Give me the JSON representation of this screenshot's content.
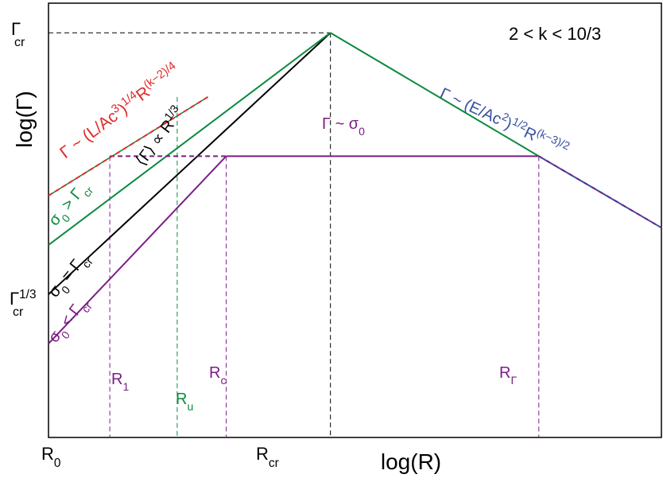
{
  "chart_data": {
    "type": "line",
    "title": "",
    "annotation": "2 < k < 10/3",
    "xlabel": "log(R)",
    "ylabel": "log(Γ)",
    "scale": "log-log",
    "grid": false,
    "legend": "none",
    "x_ticks": [
      {
        "name": "R0",
        "base": "R",
        "sub": "0",
        "x": 0
      },
      {
        "name": "Rcr",
        "base": "R",
        "sub": "cr",
        "x": 0.46
      }
    ],
    "y_ticks": [
      {
        "name": "gamma-cr",
        "base": "Γ",
        "sub": "cr",
        "sup": "",
        "y": 0.82
      },
      {
        "name": "gamma-cr-third",
        "base": "Γ",
        "sub": "cr",
        "sup": "1/3",
        "y": 0.31
      }
    ],
    "xlim": [
      0,
      1
    ],
    "ylim": [
      0,
      0.88
    ],
    "series": [
      {
        "key": "black",
        "label_parts": [
          [
            "σ",
            ""
          ],
          [
            "0",
            "sub"
          ],
          [
            " = Γ",
            ""
          ],
          [
            "cr",
            "sub"
          ]
        ],
        "color": "#000000",
        "dash": "",
        "x": [
          0,
          0.46
        ],
        "y": [
          0.29,
          0.82
        ]
      },
      {
        "key": "green-rise",
        "label_parts": [
          [
            "σ",
            ""
          ],
          [
            "0",
            "sub"
          ],
          [
            " > Γ",
            ""
          ],
          [
            "cr",
            "sub"
          ]
        ],
        "color": "#0b8a3c",
        "dash": "",
        "x": [
          0,
          0.46
        ],
        "y": [
          0.39,
          0.82
        ]
      },
      {
        "key": "purple-rise",
        "label_parts": [
          [
            "σ",
            ""
          ],
          [
            "0",
            "sub"
          ],
          [
            " < Γ",
            ""
          ],
          [
            "cr",
            "sub"
          ]
        ],
        "color": "#7b1d86",
        "dash": "",
        "x": [
          0,
          0.29
        ],
        "y": [
          0.19,
          0.57
        ]
      },
      {
        "key": "purple-plateau",
        "label_parts": [
          [
            "Γ ~ σ",
            ""
          ],
          [
            "0",
            "sub"
          ]
        ],
        "color": "#7b1d86",
        "dash": "",
        "x": [
          0.29,
          0.8
        ],
        "y": [
          0.57,
          0.57
        ]
      },
      {
        "key": "purple-plateau-dashed",
        "label_parts": [],
        "color": "#7b1d86",
        "dash": "6 4",
        "x": [
          0.1,
          0.29
        ],
        "y": [
          0.57,
          0.57
        ]
      },
      {
        "key": "green-fall",
        "label_parts": [],
        "color": "#0b8a3c",
        "dash": "",
        "x": [
          0.46,
          0.8
        ],
        "y": [
          0.82,
          0.57
        ]
      },
      {
        "key": "blue-fall",
        "label_parts": [
          [
            "Γ ~ (E/Ac",
            ""
          ],
          [
            "2",
            "sup"
          ],
          [
            ")",
            ""
          ],
          [
            "1/2",
            "sup"
          ],
          [
            "R",
            ""
          ],
          [
            "(k−3)/2",
            "sup"
          ]
        ],
        "color": "#3550a0",
        "dash": "",
        "x": [
          0.8,
          1.0
        ],
        "y": [
          0.57,
          0.425
        ]
      },
      {
        "key": "red-accel",
        "label_parts": [
          [
            "Γ ~ (L/Ac",
            ""
          ],
          [
            "3",
            "sup"
          ],
          [
            ")",
            ""
          ],
          [
            "1/4",
            "sup"
          ],
          [
            "R",
            ""
          ],
          [
            "(k−2)/4",
            "sup"
          ]
        ],
        "color": "#e02a2a",
        "dash": "6 4",
        "x": [
          0,
          0.26
        ],
        "y": [
          0.49,
          0.69
        ]
      },
      {
        "key": "black-avg",
        "label_parts": [
          [
            "⟨Γ⟩ ∝ R",
            ""
          ],
          [
            "1/3",
            "sup"
          ]
        ],
        "color": "#000000",
        "dash": "",
        "x": [],
        "y": []
      }
    ],
    "vlines": [
      {
        "name": "R1",
        "label": "R",
        "sub": "1",
        "x": 0.1,
        "y_top": 0.57,
        "color": "#7b1d86"
      },
      {
        "name": "Ru",
        "label": "R",
        "sub": "u",
        "x": 0.21,
        "y_top": 0.69,
        "color": "#0b8a3c"
      },
      {
        "name": "Rc",
        "label": "R",
        "sub": "c",
        "x": 0.29,
        "y_top": 0.57,
        "color": "#7b1d86"
      },
      {
        "name": "Rcr",
        "label": "",
        "sub": "",
        "x": 0.46,
        "y_top": 0.82,
        "color": "#000000"
      },
      {
        "name": "RGamma",
        "label": "R",
        "sub": "Γ",
        "x": 0.8,
        "y_top": 0.57,
        "color": "#7b1d86"
      }
    ],
    "hlines": [
      {
        "name": "gamma-cr-guide",
        "y": 0.82,
        "x_end": 0.46,
        "color": "#000000"
      }
    ]
  }
}
